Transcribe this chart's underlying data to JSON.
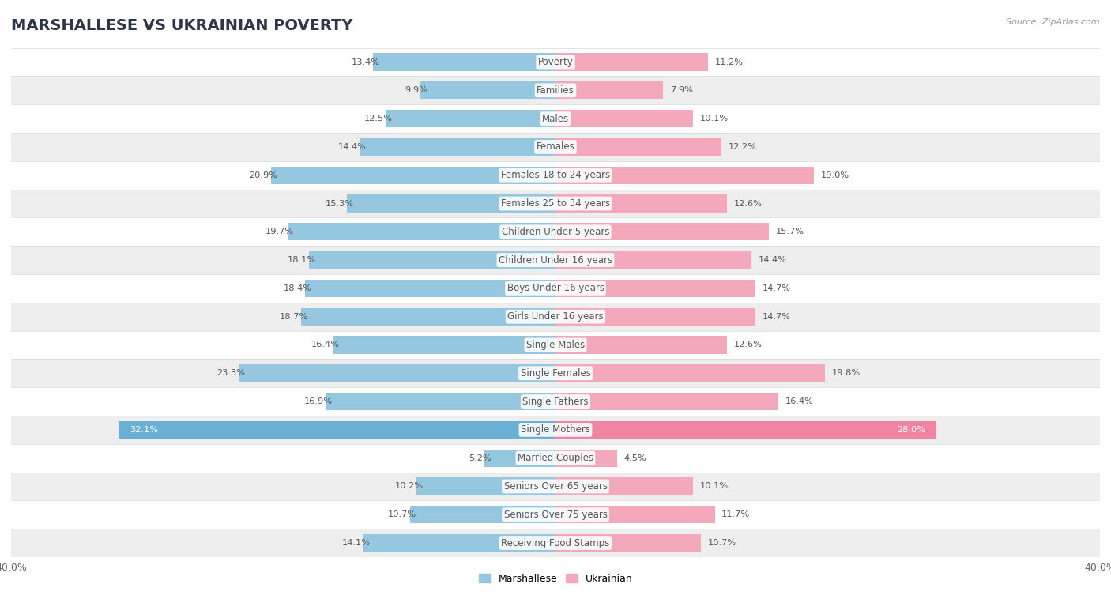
{
  "title": "MARSHALLESE VS UKRAINIAN POVERTY",
  "source": "Source: ZipAtlas.com",
  "categories": [
    "Poverty",
    "Families",
    "Males",
    "Females",
    "Females 18 to 24 years",
    "Females 25 to 34 years",
    "Children Under 5 years",
    "Children Under 16 years",
    "Boys Under 16 years",
    "Girls Under 16 years",
    "Single Males",
    "Single Females",
    "Single Fathers",
    "Single Mothers",
    "Married Couples",
    "Seniors Over 65 years",
    "Seniors Over 75 years",
    "Receiving Food Stamps"
  ],
  "marshallese": [
    13.4,
    9.9,
    12.5,
    14.4,
    20.9,
    15.3,
    19.7,
    18.1,
    18.4,
    18.7,
    16.4,
    23.3,
    16.9,
    32.1,
    5.2,
    10.2,
    10.7,
    14.1
  ],
  "ukrainian": [
    11.2,
    7.9,
    10.1,
    12.2,
    19.0,
    12.6,
    15.7,
    14.4,
    14.7,
    14.7,
    12.6,
    19.8,
    16.4,
    28.0,
    4.5,
    10.1,
    11.7,
    10.7
  ],
  "marshallese_color": "#95C8E0",
  "ukrainian_color": "#F4A8BC",
  "marshallese_highlight": "#6AAFD4",
  "ukrainian_highlight": "#EF85A3",
  "bg_color": "#ffffff",
  "row_light": "#ffffff",
  "row_dark": "#eeeeee",
  "sep_color": "#d8d8d8",
  "max_val": 40.0,
  "bar_height": 0.62,
  "title_fontsize": 14,
  "label_fontsize": 8.5,
  "value_fontsize": 8.2,
  "title_color": "#2d3748",
  "source_color": "#999999",
  "label_color": "#555555",
  "value_color": "#555555"
}
